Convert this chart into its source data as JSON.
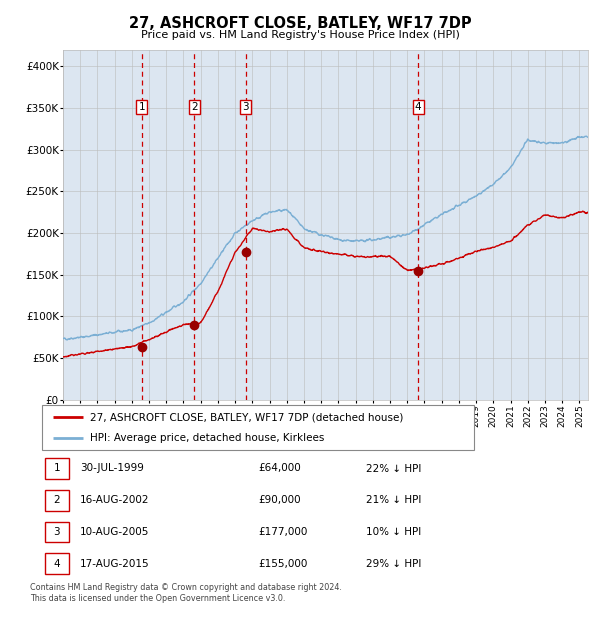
{
  "title": "27, ASHCROFT CLOSE, BATLEY, WF17 7DP",
  "subtitle": "Price paid vs. HM Land Registry's House Price Index (HPI)",
  "background_color": "#dce6f1",
  "plot_bg_color": "#dce6f1",
  "hpi_color": "#7bafd4",
  "price_color": "#cc0000",
  "sale_marker_color": "#990000",
  "vline_color": "#cc0000",
  "grid_color": "#bbbbbb",
  "ylim": [
    0,
    420000
  ],
  "yticks": [
    0,
    50000,
    100000,
    150000,
    200000,
    250000,
    300000,
    350000,
    400000
  ],
  "ytick_labels": [
    "£0",
    "£50K",
    "£100K",
    "£150K",
    "£200K",
    "£250K",
    "£300K",
    "£350K",
    "£400K"
  ],
  "sale_events": [
    {
      "label": "1",
      "date_x": 1999.58,
      "price": 64000
    },
    {
      "label": "2",
      "date_x": 2002.62,
      "price": 90000
    },
    {
      "label": "3",
      "date_x": 2005.61,
      "price": 177000
    },
    {
      "label": "4",
      "date_x": 2015.63,
      "price": 155000
    }
  ],
  "legend_line1": "27, ASHCROFT CLOSE, BATLEY, WF17 7DP (detached house)",
  "legend_line2": "HPI: Average price, detached house, Kirklees",
  "table": [
    {
      "num": "1",
      "date": "30-JUL-1999",
      "price": "£64,000",
      "pct": "22% ↓ HPI"
    },
    {
      "num": "2",
      "date": "16-AUG-2002",
      "price": "£90,000",
      "pct": "21% ↓ HPI"
    },
    {
      "num": "3",
      "date": "10-AUG-2005",
      "price": "£177,000",
      "pct": "10% ↓ HPI"
    },
    {
      "num": "4",
      "date": "17-AUG-2015",
      "price": "£155,000",
      "pct": "29% ↓ HPI"
    }
  ],
  "footnote1": "Contains HM Land Registry data © Crown copyright and database right 2024.",
  "footnote2": "This data is licensed under the Open Government Licence v3.0.",
  "xmin": 1995.0,
  "xmax": 2025.5,
  "hpi_anchors_x": [
    1995,
    1996,
    1997,
    1998,
    1999,
    2000,
    2001,
    2002,
    2003,
    2004,
    2005,
    2006,
    2007,
    2008,
    2009,
    2010,
    2011,
    2012,
    2013,
    2014,
    2015,
    2016,
    2017,
    2018,
    2019,
    2020,
    2021,
    2022,
    2023,
    2024,
    2025
  ],
  "hpi_anchors_y": [
    73000,
    75000,
    78000,
    81000,
    84000,
    92000,
    105000,
    118000,
    140000,
    170000,
    200000,
    215000,
    225000,
    228000,
    205000,
    198000,
    192000,
    190000,
    192000,
    195000,
    198000,
    210000,
    222000,
    233000,
    245000,
    258000,
    278000,
    312000,
    308000,
    308000,
    315000
  ],
  "price_anchors_x": [
    1995,
    1996,
    1997,
    1998,
    1999,
    2000,
    2001,
    2002,
    2003,
    2004,
    2005,
    2006,
    2007,
    2008,
    2009,
    2010,
    2011,
    2012,
    2013,
    2014,
    2015,
    2016,
    2017,
    2018,
    2019,
    2020,
    2021,
    2022,
    2023,
    2024,
    2025
  ],
  "price_anchors_y": [
    52000,
    55000,
    58000,
    61000,
    64000,
    72000,
    82000,
    90000,
    92000,
    130000,
    177000,
    205000,
    202000,
    205000,
    182000,
    178000,
    175000,
    172000,
    172000,
    172000,
    155000,
    158000,
    163000,
    170000,
    178000,
    183000,
    190000,
    210000,
    222000,
    218000,
    225000
  ]
}
